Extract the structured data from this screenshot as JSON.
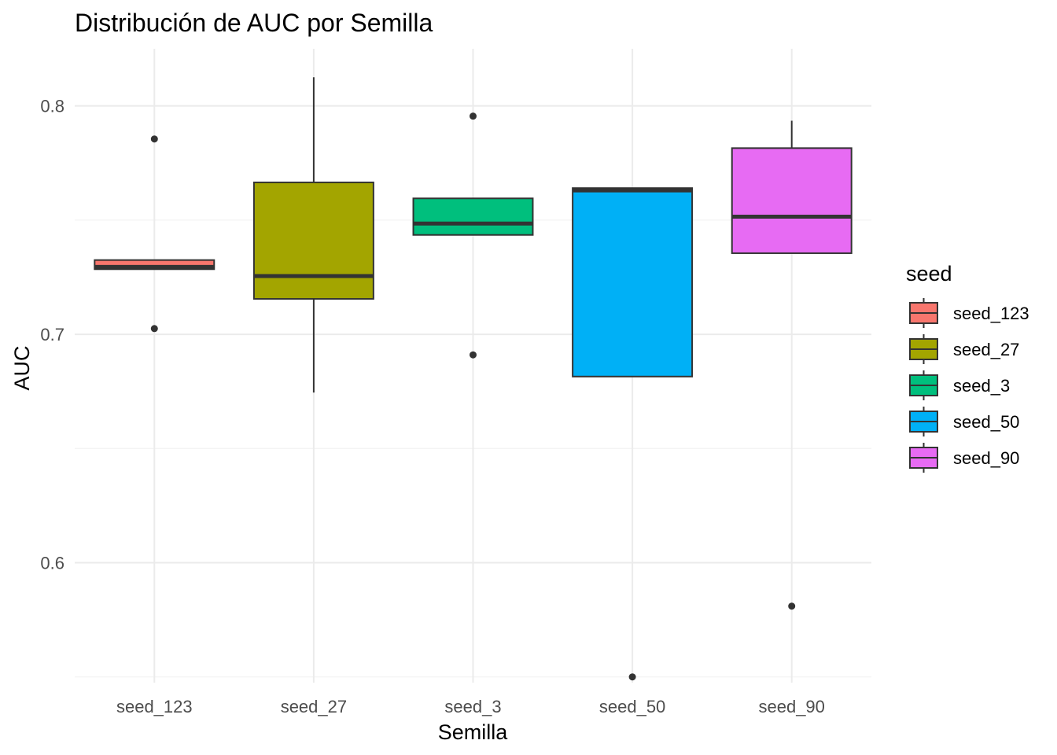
{
  "chart_data": {
    "type": "boxplot",
    "title": "Distribución de AUC por Semilla",
    "xlabel": "Semilla",
    "ylabel": "AUC",
    "ylim": [
      0.5475,
      0.825
    ],
    "yticks": [
      0.6,
      0.7,
      0.8
    ],
    "ytick_labels": [
      "0.6",
      "0.7",
      "0.8"
    ],
    "minor_yticks": [
      0.55,
      0.65,
      0.75
    ],
    "grid": true,
    "legend": {
      "title": "seed",
      "placement": "right"
    },
    "categories": [
      "seed_123",
      "seed_27",
      "seed_3",
      "seed_50",
      "seed_90"
    ],
    "series": [
      {
        "name": "seed_123",
        "color": "#F8766D",
        "min": 0.7285,
        "q1": 0.7285,
        "median": 0.7295,
        "q3": 0.7325,
        "max": 0.7325,
        "outliers": [
          0.7855,
          0.7025
        ]
      },
      {
        "name": "seed_27",
        "color": "#A3A500",
        "min": 0.6745,
        "q1": 0.7155,
        "median": 0.7255,
        "q3": 0.7665,
        "max": 0.8125,
        "outliers": []
      },
      {
        "name": "seed_3",
        "color": "#00BF7D",
        "min": 0.7435,
        "q1": 0.7435,
        "median": 0.7485,
        "q3": 0.7595,
        "max": 0.7595,
        "outliers": [
          0.7955,
          0.691
        ]
      },
      {
        "name": "seed_50",
        "color": "#00B0F6",
        "min": 0.6815,
        "q1": 0.6815,
        "median": 0.763,
        "q3": 0.764,
        "max": 0.764,
        "outliers": [
          0.55
        ]
      },
      {
        "name": "seed_90",
        "color": "#E76BF3",
        "min": 0.7355,
        "q1": 0.7355,
        "median": 0.7515,
        "q3": 0.7815,
        "max": 0.7935,
        "outliers": [
          0.581
        ]
      }
    ]
  }
}
